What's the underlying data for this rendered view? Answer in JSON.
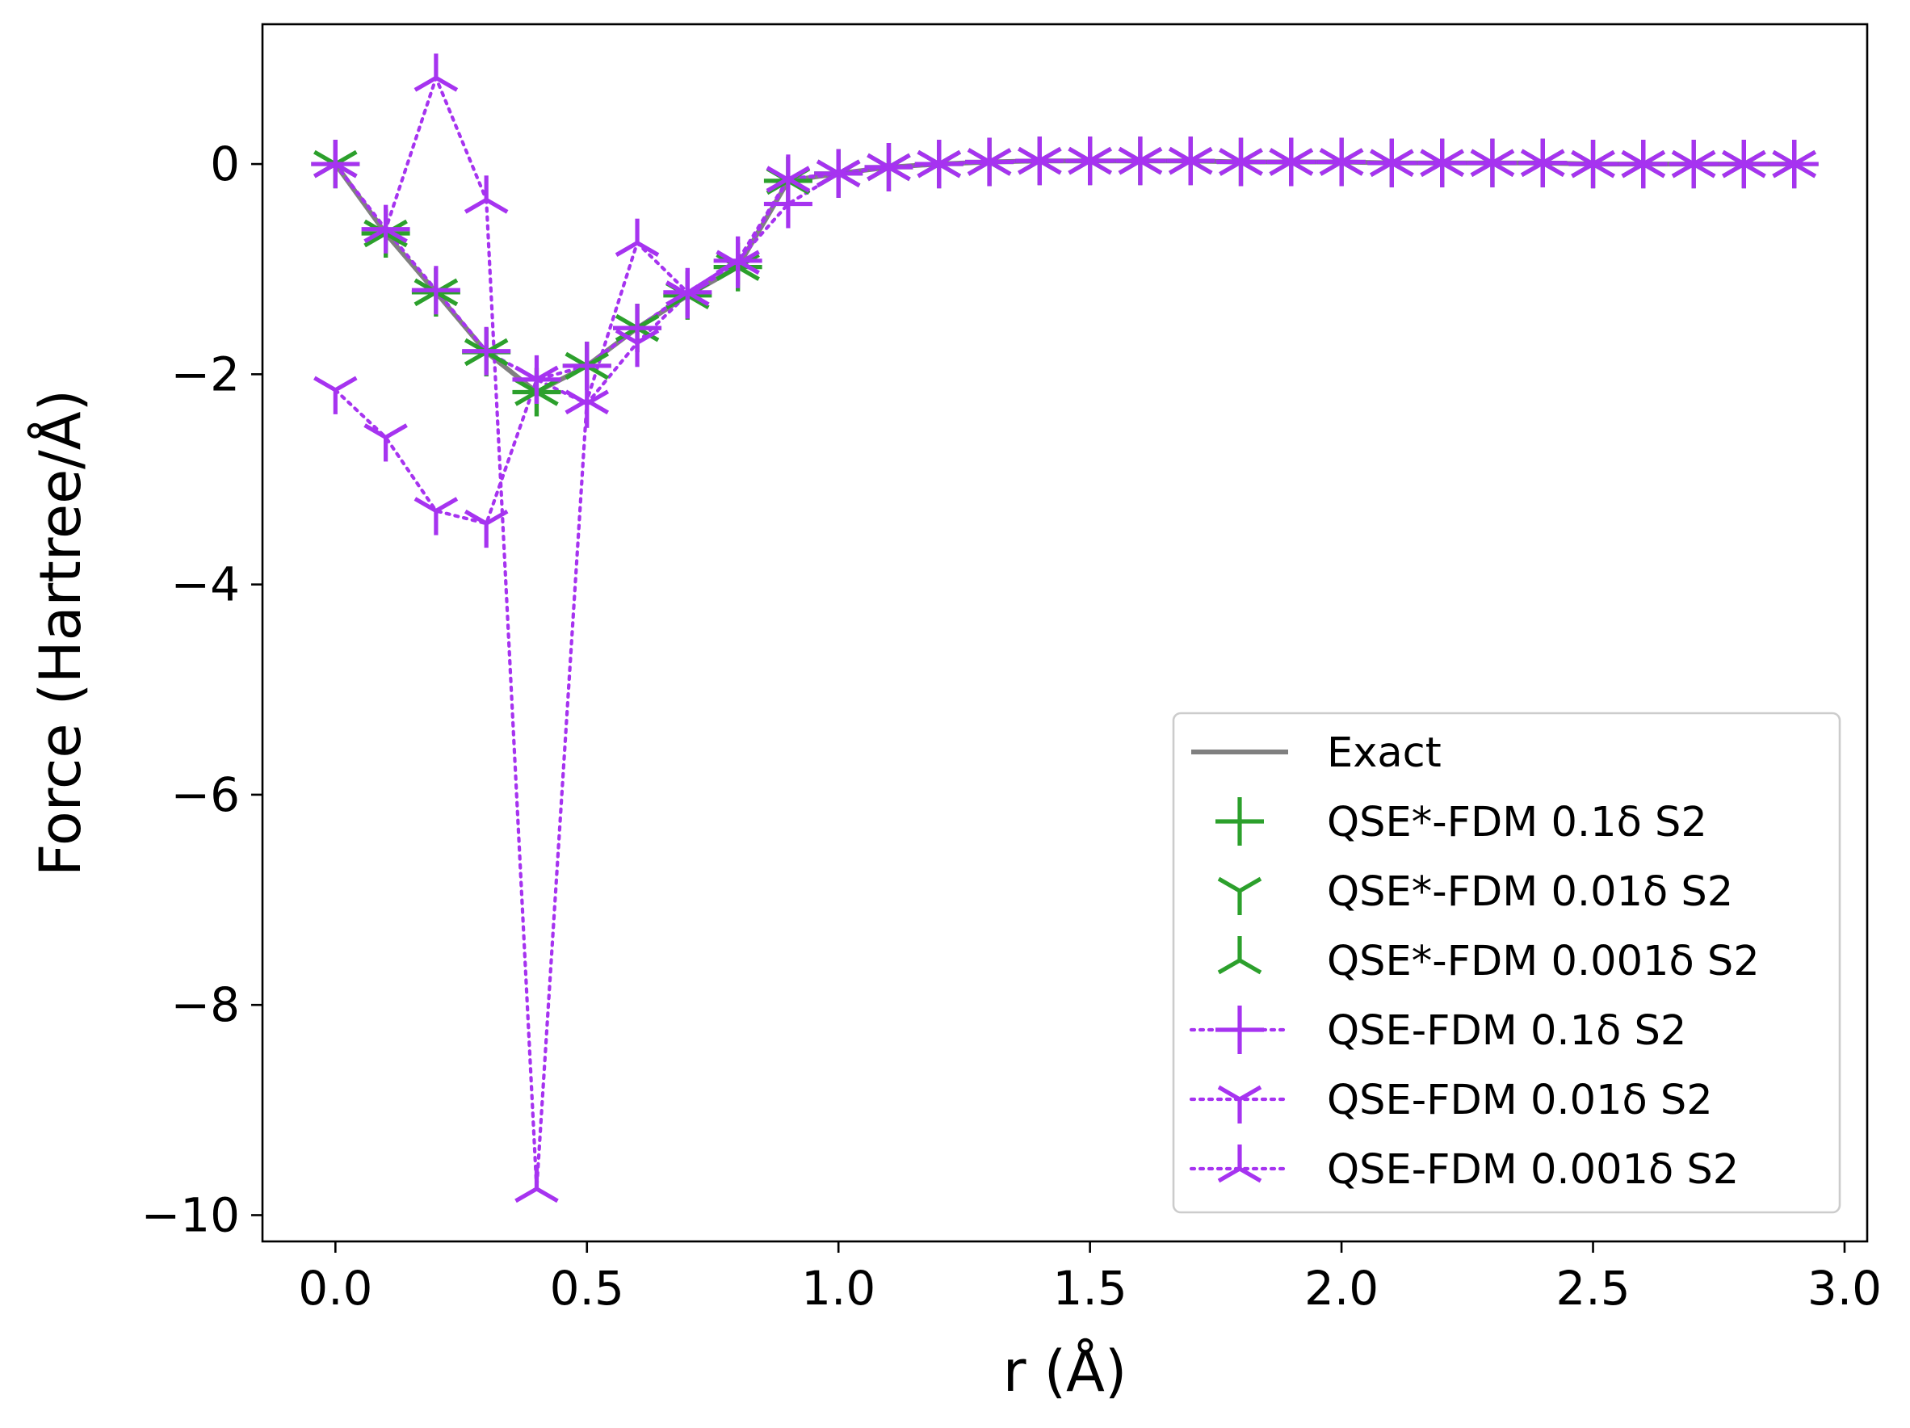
{
  "chart_data": {
    "type": "line",
    "title": "",
    "xlabel": "r (Å)",
    "ylabel": "Force (Hartree/Å)",
    "xlim": [
      -0.145,
      3.045
    ],
    "ylim": [
      -10.25,
      1.33
    ],
    "xticks": [
      0.0,
      0.5,
      1.0,
      1.5,
      2.0,
      2.5,
      3.0
    ],
    "xtick_labels": [
      "0.0",
      "0.5",
      "1.0",
      "1.5",
      "2.0",
      "2.5",
      "3.0"
    ],
    "yticks": [
      0,
      -2,
      -4,
      -6,
      -8,
      -10
    ],
    "ytick_labels": [
      "0",
      "−2",
      "−4",
      "−6",
      "−8",
      "−10"
    ],
    "grid": false,
    "legend_position": "lower-right",
    "x": [
      0.0,
      0.1,
      0.2,
      0.3,
      0.4,
      0.5,
      0.6,
      0.7,
      0.8,
      0.9,
      1.0,
      1.1,
      1.2,
      1.3,
      1.4,
      1.5,
      1.6,
      1.7,
      1.8,
      1.9,
      2.0,
      2.1,
      2.2,
      2.3,
      2.4,
      2.5,
      2.6,
      2.7,
      2.8,
      2.9
    ],
    "series": [
      {
        "name": "Exact",
        "color": "#808080",
        "line": "solid",
        "marker": "none",
        "values": [
          0.0,
          -0.66,
          -1.22,
          -1.79,
          -2.17,
          -1.92,
          -1.56,
          -1.25,
          -0.98,
          -0.16,
          -0.09,
          -0.03,
          0.0,
          0.02,
          0.03,
          0.03,
          0.03,
          0.03,
          0.02,
          0.02,
          0.02,
          0.01,
          0.01,
          0.01,
          0.01,
          0.0,
          0.0,
          0.0,
          0.0,
          0.0
        ]
      },
      {
        "name": "QSE*-FDM 0.1δ S2",
        "color": "#2ca02c",
        "line": "none",
        "marker": "plus",
        "values": [
          0.0,
          -0.66,
          -1.22,
          -1.79,
          -2.17,
          -1.92,
          -1.56,
          -1.25,
          -0.98,
          -0.16,
          -0.09,
          -0.03,
          0.0,
          0.02,
          0.03,
          0.03,
          0.03,
          0.03,
          0.02,
          0.02,
          0.02,
          0.01,
          0.01,
          0.01,
          0.01,
          0.0,
          0.0,
          0.0,
          0.0,
          0.0
        ]
      },
      {
        "name": "QSE*-FDM 0.01δ S2",
        "color": "#2ca02c",
        "line": "none",
        "marker": "tri_down",
        "values": [
          0.0,
          -0.66,
          -1.22,
          -1.79,
          -2.17,
          -1.92,
          -1.56,
          -1.25,
          -0.98,
          -0.16,
          -0.09,
          -0.03,
          0.0,
          0.02,
          0.03,
          0.03,
          0.03,
          0.03,
          0.02,
          0.02,
          0.02,
          0.01,
          0.01,
          0.01,
          0.01,
          0.0,
          0.0,
          0.0,
          0.0,
          0.0
        ]
      },
      {
        "name": "QSE*-FDM 0.001δ S2",
        "color": "#2ca02c",
        "line": "none",
        "marker": "tri_up",
        "values": [
          0.0,
          -0.66,
          -1.22,
          -1.79,
          -2.17,
          -1.92,
          -1.56,
          -1.25,
          -0.98,
          -0.16,
          -0.09,
          -0.03,
          0.0,
          0.02,
          0.03,
          0.03,
          0.03,
          0.03,
          0.02,
          0.02,
          0.02,
          0.01,
          0.01,
          0.01,
          0.01,
          0.0,
          0.0,
          0.0,
          0.0,
          0.0
        ]
      },
      {
        "name": "QSE-FDM 0.1δ S2",
        "color": "#a633f0",
        "line": "dotted",
        "marker": "plus",
        "values": [
          0.0,
          -0.62,
          -1.2,
          -1.78,
          -2.05,
          -1.92,
          -1.56,
          -1.22,
          -0.92,
          -0.38,
          -0.09,
          -0.03,
          0.0,
          0.02,
          0.03,
          0.03,
          0.03,
          0.03,
          0.02,
          0.02,
          0.02,
          0.01,
          0.01,
          0.01,
          0.01,
          0.0,
          0.0,
          0.0,
          0.0,
          0.0
        ]
      },
      {
        "name": "QSE-FDM 0.01δ S2",
        "color": "#a633f0",
        "line": "dotted",
        "marker": "tri_down",
        "values": [
          -2.15,
          -2.6,
          -3.3,
          -3.42,
          -2.05,
          -2.28,
          -1.7,
          -1.24,
          -0.95,
          -0.15,
          -0.09,
          -0.03,
          0.0,
          0.02,
          0.03,
          0.03,
          0.03,
          0.03,
          0.02,
          0.02,
          0.02,
          0.01,
          0.01,
          0.01,
          0.01,
          0.0,
          0.0,
          0.0,
          0.0,
          0.0
        ]
      },
      {
        "name": "QSE-FDM 0.001δ S2",
        "color": "#a633f0",
        "line": "dotted",
        "marker": "tri_up",
        "values": [
          0.0,
          -0.62,
          0.82,
          -0.34,
          -9.75,
          -2.25,
          -0.75,
          -1.22,
          -0.92,
          -0.14,
          -0.09,
          -0.03,
          0.0,
          0.02,
          0.03,
          0.03,
          0.03,
          0.03,
          0.02,
          0.02,
          0.02,
          0.01,
          0.01,
          0.01,
          0.01,
          0.0,
          0.0,
          0.0,
          0.0,
          0.0
        ]
      }
    ]
  }
}
